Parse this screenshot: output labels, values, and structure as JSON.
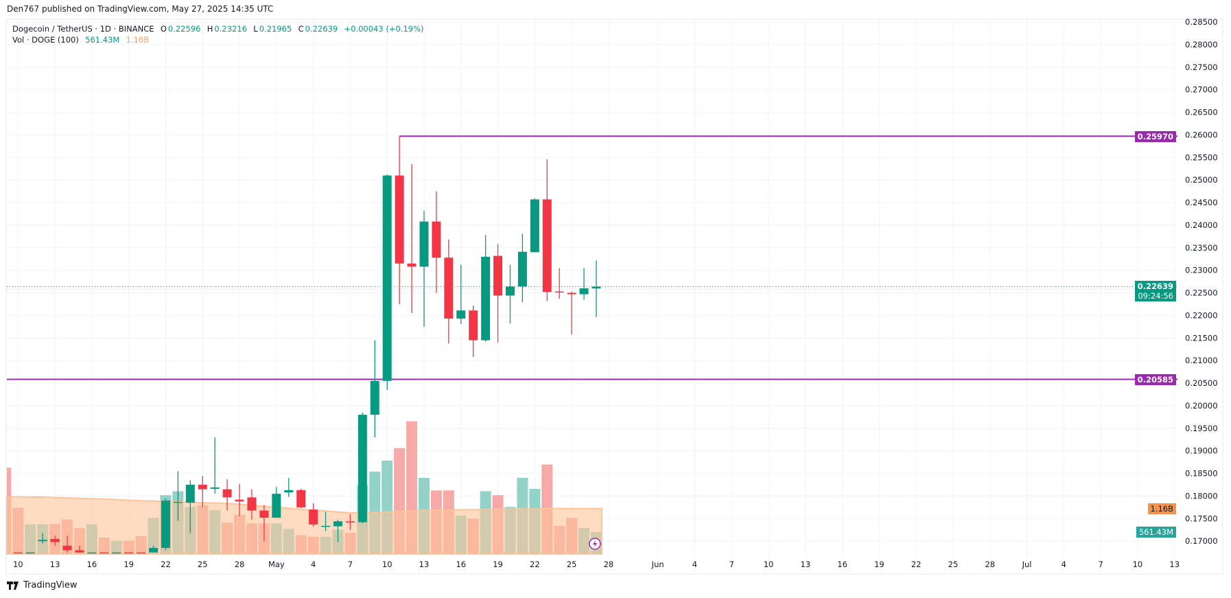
{
  "header": {
    "published": "Den767 published on TradingView.com, May 27, 2025 14:35 UTC"
  },
  "legend": {
    "symbol": "Dogecoin / TetherUS · 1D · BINANCE",
    "open_label": "O",
    "open": "0.22596",
    "high_label": "H",
    "high": "0.23216",
    "low_label": "L",
    "low": "0.21965",
    "close_label": "C",
    "close": "0.22639",
    "change": "+0.00043 (+0.19%)",
    "vol_label": "Vol · DOGE (100)",
    "vol_value": "561.43M",
    "vol_ma_value": "1.16B"
  },
  "price_labels": {
    "resistance": "0.25970",
    "support": "0.20585",
    "last": "0.22639",
    "countdown": "09:24:56",
    "vol_ma": "1.16B",
    "vol": "561.43M"
  },
  "colors": {
    "up": "#089981",
    "down": "#f23645",
    "level": "#9c27b0",
    "vol_up": "#92d2c9",
    "vol_down": "#f7a9a7",
    "vol_ma": "#fbc49a"
  },
  "footer": {
    "brand": "TradingView"
  },
  "chart_data": {
    "type": "candlestick",
    "title": "Dogecoin / TetherUS · 1D · BINANCE",
    "x_tick_labels": [
      "10",
      "13",
      "16",
      "19",
      "22",
      "25",
      "28",
      "May",
      "4",
      "7",
      "10",
      "13",
      "16",
      "19",
      "22",
      "25",
      "28",
      "Jun",
      "4",
      "7",
      "10",
      "13",
      "16",
      "19",
      "22",
      "25",
      "28",
      "Jul",
      "4",
      "7",
      "10",
      "13"
    ],
    "x_tick_days": [
      0,
      3,
      6,
      9,
      12,
      15,
      18,
      21,
      24,
      27,
      30,
      33,
      36,
      39,
      42,
      45,
      48,
      52,
      55,
      58,
      61,
      64,
      67,
      70,
      73,
      76,
      79,
      82,
      85,
      88,
      91,
      94
    ],
    "y_ticks": [
      "0.28500",
      "0.28000",
      "0.27500",
      "0.27000",
      "0.26500",
      "0.26000",
      "0.25500",
      "0.25000",
      "0.24500",
      "0.24000",
      "0.23500",
      "0.23000",
      "0.22500",
      "0.22000",
      "0.21500",
      "0.21000",
      "0.20500",
      "0.20000",
      "0.19500",
      "0.19000",
      "0.18500",
      "0.18000",
      "0.17500",
      "0.17000"
    ],
    "ylim": [
      0.1675,
      0.2875
    ],
    "horizontal_levels": [
      0.2597,
      0.20585
    ],
    "last_price": 0.22639,
    "candles_start": "Apr 9",
    "candles": [
      [
        0.168,
        0.169,
        0.165,
        0.166
      ],
      [
        0.166,
        0.167,
        0.162,
        0.163
      ],
      [
        0.163,
        0.166,
        0.161,
        0.165
      ],
      [
        0.17,
        0.1718,
        0.1695,
        0.1703
      ],
      [
        0.1705,
        0.1712,
        0.169,
        0.1698
      ],
      [
        0.169,
        0.1712,
        0.167,
        0.168
      ],
      [
        0.168,
        0.169,
        0.162,
        0.164
      ],
      [
        0.164,
        0.166,
        0.161,
        0.165
      ],
      [
        0.165,
        0.1665,
        0.16,
        0.162
      ],
      [
        0.162,
        0.164,
        0.16,
        0.163
      ],
      [
        0.163,
        0.165,
        0.161,
        0.162
      ],
      [
        0.162,
        0.164,
        0.159,
        0.161
      ],
      [
        0.161,
        0.169,
        0.16,
        0.1685
      ],
      [
        0.1685,
        0.1795,
        0.168,
        0.179
      ],
      [
        0.1785,
        0.1855,
        0.1745,
        0.1787
      ],
      [
        0.1785,
        0.1835,
        0.1718,
        0.1825
      ],
      [
        0.1825,
        0.1845,
        0.1775,
        0.1815
      ],
      [
        0.1816,
        0.193,
        0.1805,
        0.1819
      ],
      [
        0.1815,
        0.1837,
        0.1768,
        0.1797
      ],
      [
        0.1792,
        0.1827,
        0.1755,
        0.1788
      ],
      [
        0.1797,
        0.1815,
        0.1748,
        0.1768
      ],
      [
        0.1768,
        0.178,
        0.17,
        0.1752
      ],
      [
        0.1752,
        0.182,
        0.1752,
        0.1805
      ],
      [
        0.1808,
        0.184,
        0.1798,
        0.1813
      ],
      [
        0.1813,
        0.1816,
        0.1773,
        0.1775
      ],
      [
        0.177,
        0.1784,
        0.1733,
        0.1737
      ],
      [
        0.1733,
        0.1765,
        0.1722,
        0.1734
      ],
      [
        0.1733,
        0.1747,
        0.1698,
        0.1744
      ],
      [
        0.1744,
        0.176,
        0.1725,
        0.1742
      ],
      [
        0.1742,
        0.1985,
        0.174,
        0.198
      ],
      [
        0.198,
        0.2145,
        0.193,
        0.2055
      ],
      [
        0.2055,
        0.2512,
        0.2035,
        0.251
      ],
      [
        0.251,
        0.2597,
        0.2225,
        0.2315
      ],
      [
        0.2315,
        0.2535,
        0.2205,
        0.2308
      ],
      [
        0.2308,
        0.2432,
        0.2175,
        0.2408
      ],
      [
        0.2408,
        0.2475,
        0.225,
        0.2328
      ],
      [
        0.2328,
        0.2368,
        0.2138,
        0.2193
      ],
      [
        0.2193,
        0.2312,
        0.2181,
        0.2211
      ],
      [
        0.2211,
        0.2222,
        0.2108,
        0.2145
      ],
      [
        0.2145,
        0.2378,
        0.2142,
        0.233
      ],
      [
        0.2332,
        0.2358,
        0.214,
        0.2244
      ],
      [
        0.2244,
        0.2312,
        0.2182,
        0.2264
      ],
      [
        0.2264,
        0.2381,
        0.2229,
        0.2341
      ],
      [
        0.234,
        0.2459,
        0.234,
        0.2457
      ],
      [
        0.2457,
        0.2546,
        0.2232,
        0.2252
      ],
      [
        0.2253,
        0.2305,
        0.2237,
        0.2251
      ],
      [
        0.225,
        0.2253,
        0.2158,
        0.2247
      ],
      [
        0.2247,
        0.2305,
        0.2235,
        0.226
      ],
      [
        0.22596,
        0.23216,
        0.21965,
        0.22639
      ]
    ],
    "volume_unit": "B",
    "volumes": [
      2.2,
      1.18,
      0.76,
      0.76,
      0.77,
      0.88,
      0.66,
      0.76,
      0.42,
      0.34,
      0.34,
      0.46,
      0.92,
      1.5,
      1.6,
      1.2,
      1.24,
      1.12,
      0.8,
      1.0,
      0.78,
      0.78,
      0.78,
      0.64,
      0.48,
      0.44,
      0.44,
      0.62,
      0.54,
      1.76,
      2.1,
      2.38,
      2.7,
      3.38,
      1.94,
      1.62,
      1.62,
      0.98,
      0.9,
      1.6,
      1.5,
      1.2,
      1.94,
      1.66,
      2.28,
      0.72,
      0.92,
      0.66,
      0.56
    ],
    "volume_ma": [
      1.46,
      1.46,
      1.45,
      1.45,
      1.44,
      1.43,
      1.42,
      1.41,
      1.4,
      1.39,
      1.37,
      1.36,
      1.35,
      1.34,
      1.33,
      1.32,
      1.31,
      1.3,
      1.29,
      1.27,
      1.24,
      1.22,
      1.19,
      1.17,
      1.14,
      1.12,
      1.1,
      1.07,
      1.05,
      1.05,
      1.06,
      1.07,
      1.08,
      1.1,
      1.11,
      1.12,
      1.12,
      1.13,
      1.13,
      1.14,
      1.14,
      1.14,
      1.15,
      1.15,
      1.16,
      1.16,
      1.16,
      1.16,
      1.16
    ]
  }
}
